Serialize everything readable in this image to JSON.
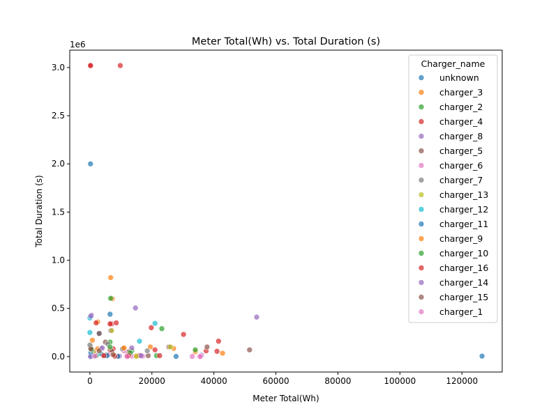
{
  "chart_data": {
    "type": "scatter",
    "title": "Meter Total(Wh) vs. Total Duration (s)",
    "xlabel": "Meter Total(Wh)",
    "ylabel": "Total Duration (s)",
    "y_offset_label": "1e6",
    "xlim": [
      -6500,
      133000
    ],
    "ylim": [
      -160000,
      3180000
    ],
    "x_ticks": [
      0,
      20000,
      40000,
      60000,
      80000,
      100000,
      120000
    ],
    "x_tick_labels": [
      "0",
      "20000",
      "40000",
      "60000",
      "80000",
      "100000",
      "120000"
    ],
    "y_ticks": [
      0,
      500000,
      1000000,
      1500000,
      2000000,
      2500000,
      3000000
    ],
    "y_tick_labels": [
      "0.0",
      "0.5",
      "1.0",
      "1.5",
      "2.0",
      "2.5",
      "3.0"
    ],
    "grid": false,
    "legend": {
      "title": "Charger_name",
      "placement": "top-right"
    },
    "marker_alpha": 0.7,
    "series": [
      {
        "name": "unknown",
        "color": "#1f77b4",
        "points": [
          [
            200,
            2000000
          ],
          [
            126500,
            5000
          ],
          [
            6500,
            440000
          ],
          [
            27800,
            2000
          ],
          [
            1000,
            20000
          ],
          [
            3000,
            240000
          ],
          [
            5000,
            10000
          ],
          [
            400,
            5000
          ]
        ]
      },
      {
        "name": "charger_3",
        "color": "#ff7f0e",
        "points": [
          [
            6700,
            820000
          ],
          [
            2500,
            360000
          ],
          [
            7200,
            600000
          ],
          [
            42800,
            35000
          ],
          [
            19500,
            100000
          ],
          [
            11000,
            85000
          ],
          [
            800,
            170000
          ],
          [
            2000,
            60000
          ],
          [
            15000,
            10000
          ],
          [
            34000,
            50000
          ],
          [
            27000,
            85000
          ]
        ]
      },
      {
        "name": "charger_2",
        "color": "#2ca02c",
        "points": [
          [
            6700,
            605000
          ],
          [
            23200,
            290000
          ],
          [
            300,
            100000
          ],
          [
            6500,
            150000
          ],
          [
            13500,
            60000
          ],
          [
            21500,
            10000
          ],
          [
            34000,
            70000
          ],
          [
            2000,
            5000
          ],
          [
            5500,
            20000
          ]
        ]
      },
      {
        "name": "charger_4",
        "color": "#d62728",
        "points": [
          [
            200,
            3020000
          ],
          [
            9800,
            3020000
          ],
          [
            7000,
            340000
          ],
          [
            2000,
            350000
          ],
          [
            8500,
            350000
          ],
          [
            19800,
            300000
          ],
          [
            30200,
            230000
          ],
          [
            41500,
            160000
          ],
          [
            6500,
            70000
          ],
          [
            12000,
            10000
          ],
          [
            4000,
            20000
          ],
          [
            1000,
            60000
          ],
          [
            37500,
            60000
          ],
          [
            22500,
            10000
          ],
          [
            21000,
            70000
          ],
          [
            16000,
            10000
          ],
          [
            9000,
            8000
          ],
          [
            7500,
            80000
          ],
          [
            41000,
            55000
          ]
        ]
      },
      {
        "name": "charger_8",
        "color": "#9467bd",
        "points": [
          [
            53800,
            410000
          ],
          [
            14700,
            505000
          ],
          [
            500,
            430000
          ],
          [
            6700,
            270000
          ],
          [
            13500,
            90000
          ],
          [
            3500,
            80000
          ],
          [
            36000,
            15000
          ],
          [
            200,
            10000
          ],
          [
            9500,
            5000
          ]
        ]
      },
      {
        "name": "charger_5",
        "color": "#8c564b",
        "points": [
          [
            51500,
            70000
          ],
          [
            37800,
            100000
          ],
          [
            25500,
            100000
          ],
          [
            5000,
            150000
          ],
          [
            18800,
            10000
          ],
          [
            12500,
            50000
          ],
          [
            3000,
            240000
          ],
          [
            300,
            90000
          ],
          [
            7000,
            60000
          ]
        ]
      },
      {
        "name": "charger_6",
        "color": "#e377c2",
        "points": [
          [
            35800,
            5000
          ],
          [
            33000,
            2000
          ],
          [
            17000,
            5000
          ],
          [
            6000,
            20000
          ],
          [
            11000,
            60000
          ],
          [
            1500,
            30000
          ],
          [
            13500,
            5000
          ]
        ]
      },
      {
        "name": "charger_7",
        "color": "#7f7f7f",
        "points": [
          [
            18500,
            60000
          ],
          [
            2000,
            10000
          ],
          [
            0,
            120000
          ],
          [
            5800,
            130000
          ],
          [
            10500,
            80000
          ]
        ]
      },
      {
        "name": "charger_13",
        "color": "#bcbd22",
        "points": [
          [
            7000,
            270000
          ],
          [
            26000,
            100000
          ],
          [
            1200,
            50000
          ],
          [
            15000,
            2000
          ]
        ]
      },
      {
        "name": "charger_12",
        "color": "#17becf",
        "points": [
          [
            0,
            250000
          ],
          [
            0,
            400000
          ],
          [
            21000,
            345000
          ],
          [
            16000,
            160000
          ],
          [
            3500,
            30000
          ],
          [
            500,
            10000
          ]
        ]
      },
      {
        "name": "charger_11",
        "color": "#1f77b4",
        "points": [
          [
            5500,
            10000
          ],
          [
            9000,
            3000
          ],
          [
            300,
            40000
          ]
        ]
      },
      {
        "name": "charger_9",
        "color": "#ff7f0e",
        "points": [
          [
            11000,
            90000
          ],
          [
            2500,
            80000
          ],
          [
            7800,
            20000
          ]
        ]
      },
      {
        "name": "charger_10",
        "color": "#2ca02c",
        "points": [
          [
            600,
            70000
          ],
          [
            13000,
            40000
          ],
          [
            6500,
            100000
          ]
        ]
      },
      {
        "name": "charger_16",
        "color": "#d62728",
        "points": [
          [
            200,
            3020000
          ],
          [
            6500,
            340000
          ],
          [
            4500,
            10000
          ],
          [
            8000,
            5000
          ],
          [
            12500,
            10000
          ]
        ]
      },
      {
        "name": "charger_14",
        "color": "#9467bd",
        "points": [
          [
            300,
            420000
          ],
          [
            4000,
            90000
          ],
          [
            16500,
            10000
          ],
          [
            200,
            0
          ]
        ]
      },
      {
        "name": "charger_15",
        "color": "#8c564b",
        "points": [
          [
            3000,
            60000
          ],
          [
            7500,
            20000
          ],
          [
            300,
            80000
          ]
        ]
      },
      {
        "name": "charger_1",
        "color": "#e377c2",
        "points": [
          [
            35500,
            0
          ],
          [
            12000,
            0
          ],
          [
            1500,
            5000
          ]
        ]
      }
    ]
  }
}
